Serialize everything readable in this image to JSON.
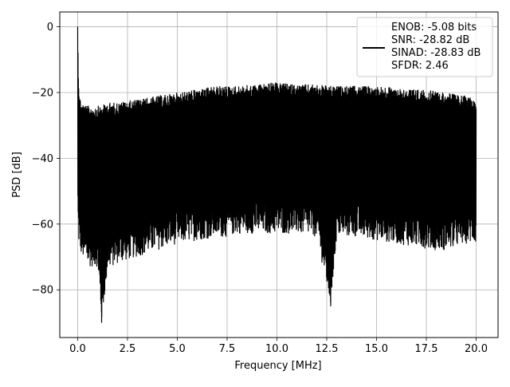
{
  "chart_data": {
    "type": "line",
    "title": "",
    "xlabel": "Frequency [MHz]",
    "ylabel": "PSD [dB]",
    "xlim": [
      -0.9,
      21.1
    ],
    "ylim": [
      -94.5,
      4.5
    ],
    "x_ticks": [
      0.0,
      2.5,
      5.0,
      7.5,
      10.0,
      12.5,
      15.0,
      17.5,
      20.0
    ],
    "x_tick_labels": [
      "0.0",
      "2.5",
      "5.0",
      "7.5",
      "10.0",
      "12.5",
      "15.0",
      "17.5",
      "20.0"
    ],
    "y_ticks": [
      0,
      -20,
      -40,
      -60,
      -80
    ],
    "y_tick_labels": [
      "0",
      "−20",
      "−40",
      "−60",
      "−80"
    ],
    "grid": true,
    "legend_position": "top-right",
    "series": [
      {
        "color": "#000000",
        "legend_lines": [
          "ENOB: -5.08 bits",
          "SNR: -28.82 dB",
          "SINAD: -28.83 dB",
          "SFDR: 2.46"
        ],
        "x": [
          0.0,
          0.02,
          0.05,
          0.1,
          0.2,
          0.5,
          1.0,
          1.2,
          1.5,
          2.0,
          3.0,
          4.0,
          5.0,
          6.0,
          7.0,
          7.5,
          8.0,
          9.0,
          9.5,
          10.0,
          11.0,
          12.0,
          12.7,
          13.0,
          14.0,
          15.0,
          16.0,
          17.0,
          18.0,
          18.5,
          19.0,
          19.5,
          20.0
        ],
        "upper": [
          0.0,
          -8,
          -16,
          -21,
          -23,
          -24,
          -24,
          -24,
          -23,
          -23,
          -22,
          -21,
          -20,
          -19,
          -18,
          -18,
          -18,
          -17.5,
          -17,
          -17,
          -17.5,
          -17.5,
          -18,
          -18,
          -18,
          -18,
          -18.5,
          -19,
          -19.5,
          -20,
          -20.5,
          -21,
          -21.5
        ],
        "lower": [
          -55,
          -62,
          -66,
          -68,
          -70,
          -73,
          -73,
          -90,
          -74,
          -72,
          -70,
          -68,
          -66,
          -65,
          -64,
          -64,
          -63,
          -63,
          -63,
          -63,
          -63,
          -64,
          -85,
          -64,
          -64,
          -65,
          -66,
          -67,
          -68,
          -68,
          -67,
          -66,
          -66
        ]
      }
    ]
  }
}
